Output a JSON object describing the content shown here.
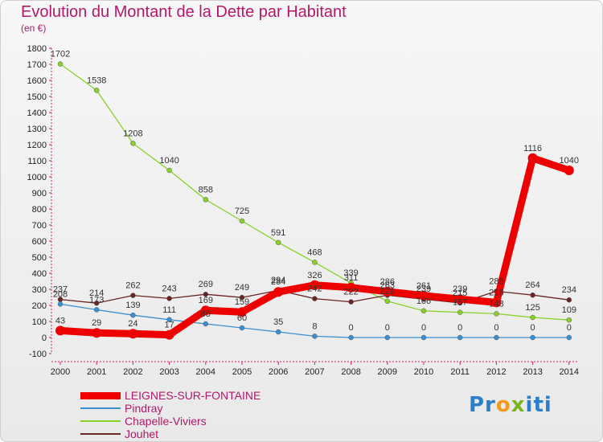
{
  "chart_data": {
    "type": "line",
    "title": "Evolution du Montant de la Dette par Habitant",
    "subtitle": "(en €)",
    "x": [
      "2000",
      "2001",
      "2002",
      "2003",
      "2004",
      "2005",
      "2006",
      "2007",
      "2008",
      "2009",
      "2010",
      "2011",
      "2012",
      "2013",
      "2014"
    ],
    "ylim": [
      -100,
      1800
    ],
    "yticks": [
      -100,
      0,
      100,
      200,
      300,
      400,
      500,
      600,
      700,
      800,
      900,
      1000,
      1100,
      1200,
      1300,
      1400,
      1500,
      1600,
      1700,
      1800
    ],
    "grid": false,
    "legend_position": "bottom-left",
    "series": [
      {
        "name": "LEIGNES-SUR-FONTAINE",
        "color": "#ee0000",
        "values": [
          43,
          29,
          24,
          17,
          169,
          159,
          284,
          326,
          311,
          286,
          261,
          239,
          218,
          1116,
          1040
        ],
        "labels": [
          "43",
          "29",
          "24",
          "17",
          "169",
          "159",
          "284",
          "326",
          "311",
          "286",
          "261",
          "239",
          "218",
          "1116",
          "1040"
        ]
      },
      {
        "name": "Pindray",
        "color": "#3a8fd2",
        "values": [
          208,
          173,
          139,
          111,
          85,
          60,
          35,
          8,
          0,
          0,
          0,
          0,
          0,
          0,
          0
        ],
        "labels": [
          "208",
          "173",
          "139",
          "111",
          "85",
          "60",
          "35",
          "8",
          "0",
          "0",
          "0",
          "0",
          "0",
          "0",
          "0"
        ]
      },
      {
        "name": "Chapelle-Viviers",
        "color": "#88d12a",
        "values": [
          1702,
          1538,
          1208,
          1040,
          858,
          725,
          591,
          468,
          339,
          226,
          166,
          157,
          148,
          125,
          109
        ],
        "labels": [
          "1702",
          "1538",
          "1208",
          "1040",
          "858",
          "725",
          "591",
          "468",
          "339",
          "226",
          "166",
          "157",
          "148",
          "125",
          "109"
        ]
      },
      {
        "name": "Jouhet",
        "color": "#6b2525",
        "values": [
          237,
          214,
          262,
          243,
          269,
          249,
          294,
          242,
          222,
          263,
          239,
          215,
          288,
          264,
          234
        ],
        "labels": [
          "237",
          "214",
          "262",
          "243",
          "269",
          "249",
          "294",
          "242",
          "222",
          "263",
          "239",
          "215",
          "288",
          "264",
          "234"
        ]
      }
    ]
  },
  "logo": {
    "p1": "Pr",
    "p2": "o",
    "p3": "x",
    "p4": "iti"
  }
}
